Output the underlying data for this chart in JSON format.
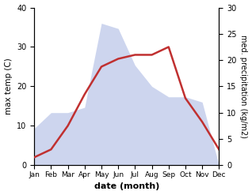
{
  "months": [
    "Jan",
    "Feb",
    "Mar",
    "Apr",
    "May",
    "Jun",
    "Jul",
    "Aug",
    "Sep",
    "Oct",
    "Nov",
    "Dec"
  ],
  "temp": [
    2,
    4,
    10,
    18,
    25,
    27,
    28,
    28,
    30,
    17,
    11,
    4
  ],
  "precip": [
    7,
    10,
    10,
    11,
    27,
    26,
    19,
    15,
    13,
    13,
    12,
    0
  ],
  "temp_color": "#c03030",
  "precip_fill_color": "#b8c4e8",
  "xlabel": "date (month)",
  "ylabel_left": "max temp (C)",
  "ylabel_right": "med. precipitation (kg/m2)",
  "ylim_left": [
    0,
    40
  ],
  "ylim_right": [
    0,
    30
  ],
  "yticks_left": [
    0,
    10,
    20,
    30,
    40
  ],
  "yticks_right": [
    0,
    5,
    10,
    15,
    20,
    25,
    30
  ],
  "bg_color": "#ffffff",
  "temp_linewidth": 1.8
}
